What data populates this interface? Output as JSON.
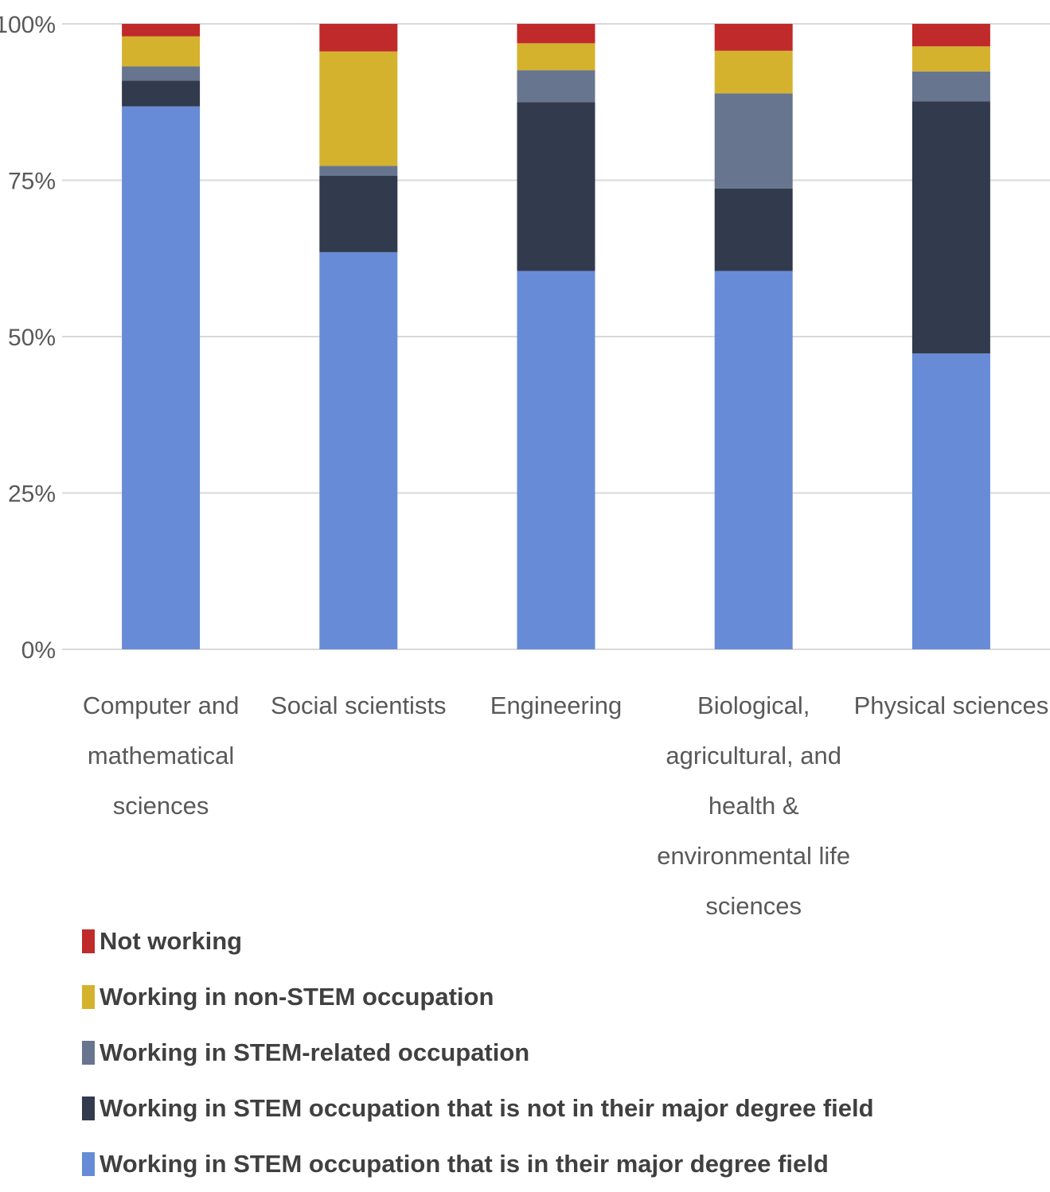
{
  "chart_data": {
    "type": "bar",
    "stacked": true,
    "categories": [
      "Computer and mathematical sciences",
      "Social scientists",
      "Engineering",
      "Biological, agricultural, and health & environmental life sciences",
      "Physical sciences"
    ],
    "category_lines": [
      [
        "Computer and",
        "mathematical",
        "sciences"
      ],
      [
        "Social scientists"
      ],
      [
        "Engineering"
      ],
      [
        "Biological,",
        "agricultural, and",
        "health &",
        "environmental life",
        "sciences"
      ],
      [
        "Physical sciences"
      ]
    ],
    "series": [
      {
        "name": "Working in STEM occupation that is in their major degree field",
        "color": "#678BD6",
        "values": [
          86.8,
          63.5,
          60.5,
          60.5,
          47.3
        ]
      },
      {
        "name": "Working in STEM occupation that is not in their major degree field",
        "color": "#323A4D",
        "values": [
          4.1,
          12.2,
          27.0,
          13.2,
          40.3
        ]
      },
      {
        "name": "Working in STEM-related occupation",
        "color": "#68758F",
        "values": [
          2.3,
          1.6,
          5.1,
          15.2,
          4.8
        ]
      },
      {
        "name": "Working in non-STEM occupation",
        "color": "#D5B22E",
        "values": [
          4.8,
          18.3,
          4.3,
          6.8,
          4.0
        ]
      },
      {
        "name": "Not working",
        "color": "#C02A2A",
        "values": [
          2.0,
          4.4,
          3.1,
          4.3,
          3.6
        ]
      }
    ],
    "legend_order": [
      4,
      3,
      2,
      1,
      0
    ],
    "yticks": [
      "0%",
      "25%",
      "50%",
      "75%",
      "100%"
    ],
    "ylim": [
      0,
      100
    ],
    "grid": true,
    "legend_position": "bottom-left",
    "title": "",
    "xlabel": "",
    "ylabel": ""
  }
}
